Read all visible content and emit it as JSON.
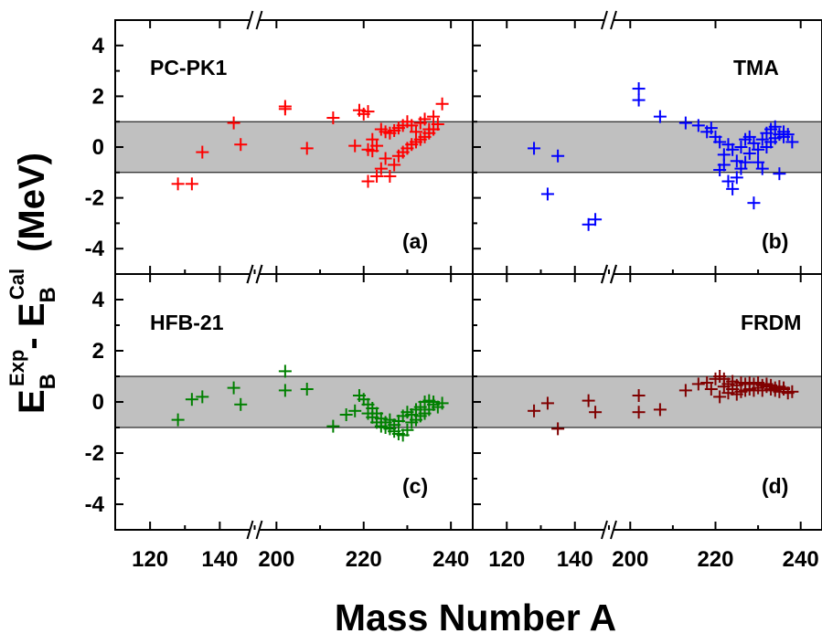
{
  "figure": {
    "xlabel": "Mass Number A",
    "ylabel": {
      "main": "E",
      "sub": "B",
      "sup_exp": "Exp",
      "dash": "- E",
      "sub2": "B",
      "sup_cal": "Cal",
      "unit": "(MeV)"
    }
  },
  "axes": {
    "x_ticks_left": [
      "120",
      "140"
    ],
    "x_ticks_right": [
      "200",
      "220",
      "240"
    ],
    "y_ticks": [
      "4",
      "2",
      "0",
      "-2",
      "-4"
    ],
    "band_color": "#c0c0c0",
    "band_range": [
      -1,
      1
    ]
  },
  "chart_data": [
    {
      "type": "scatter",
      "panel": "(a)",
      "model": "PC-PK1",
      "color": "#ff0000",
      "marker": "plus",
      "xlim_segments": [
        [
          110,
          150
        ],
        [
          195,
          245
        ]
      ],
      "ylim": [
        -5,
        5
      ],
      "points": [
        [
          128,
          -1.45
        ],
        [
          132,
          -1.45
        ],
        [
          135,
          -0.2
        ],
        [
          144,
          0.95
        ],
        [
          146,
          0.1
        ],
        [
          202,
          1.6
        ],
        [
          202,
          1.5
        ],
        [
          207,
          -0.05
        ],
        [
          213,
          1.15
        ],
        [
          218,
          0.05
        ],
        [
          219,
          1.45
        ],
        [
          220,
          1.3
        ],
        [
          221,
          1.4
        ],
        [
          221,
          -0.1
        ],
        [
          221,
          -1.35
        ],
        [
          222,
          -0.15
        ],
        [
          222,
          0.3
        ],
        [
          223,
          -1.15
        ],
        [
          223,
          0.05
        ],
        [
          224,
          -0.85
        ],
        [
          224,
          0.7
        ],
        [
          225,
          -0.45
        ],
        [
          225,
          0.6
        ],
        [
          226,
          -1.15
        ],
        [
          226,
          0.55
        ],
        [
          227,
          -0.7
        ],
        [
          227,
          0.65
        ],
        [
          228,
          -0.35
        ],
        [
          228,
          0.75
        ],
        [
          229,
          -0.2
        ],
        [
          229,
          0.85
        ],
        [
          230,
          -0.05
        ],
        [
          230,
          1.0
        ],
        [
          231,
          0.1
        ],
        [
          231,
          0.85
        ],
        [
          232,
          0.2
        ],
        [
          232,
          0.6
        ],
        [
          233,
          0.3
        ],
        [
          233,
          0.95
        ],
        [
          234,
          0.4
        ],
        [
          234,
          1.1
        ],
        [
          235,
          0.55
        ],
        [
          235,
          0.7
        ],
        [
          236,
          0.7
        ],
        [
          236,
          1.2
        ],
        [
          237,
          0.9
        ],
        [
          238,
          1.7
        ]
      ]
    },
    {
      "type": "scatter",
      "panel": "(b)",
      "model": "TMA",
      "color": "#0000ff",
      "marker": "plus",
      "xlim_segments": [
        [
          110,
          150
        ],
        [
          195,
          245
        ]
      ],
      "ylim": [
        -5,
        5
      ],
      "points": [
        [
          128,
          -0.05
        ],
        [
          132,
          -1.85
        ],
        [
          135,
          -0.35
        ],
        [
          144,
          -3.05
        ],
        [
          146,
          -2.85
        ],
        [
          202,
          2.3
        ],
        [
          202,
          1.85
        ],
        [
          207,
          1.2
        ],
        [
          213,
          0.95
        ],
        [
          216,
          0.85
        ],
        [
          218,
          0.6
        ],
        [
          219,
          0.75
        ],
        [
          220,
          0.4
        ],
        [
          221,
          -0.9
        ],
        [
          221,
          0.2
        ],
        [
          222,
          -0.3
        ],
        [
          222,
          -0.7
        ],
        [
          223,
          0.1
        ],
        [
          223,
          -1.35
        ],
        [
          224,
          -0.1
        ],
        [
          224,
          -1.65
        ],
        [
          225,
          -0.55
        ],
        [
          225,
          -1.2
        ],
        [
          226,
          0.0
        ],
        [
          226,
          -0.85
        ],
        [
          227,
          0.3
        ],
        [
          227,
          -0.6
        ],
        [
          228,
          0.4
        ],
        [
          228,
          -0.25
        ],
        [
          229,
          -2.2
        ],
        [
          229,
          0.15
        ],
        [
          230,
          -0.6
        ],
        [
          230,
          -0.1
        ],
        [
          231,
          -0.85
        ],
        [
          231,
          0.3
        ],
        [
          232,
          0.55
        ],
        [
          232,
          0.0
        ],
        [
          233,
          0.7
        ],
        [
          233,
          0.2
        ],
        [
          234,
          0.8
        ],
        [
          234,
          0.35
        ],
        [
          235,
          0.5
        ],
        [
          235,
          -1.05
        ],
        [
          236,
          0.6
        ],
        [
          236,
          0.4
        ],
        [
          237,
          0.5
        ],
        [
          238,
          0.2
        ]
      ]
    },
    {
      "type": "scatter",
      "panel": "(c)",
      "model": "HFB-21",
      "color": "#008000",
      "marker": "plus",
      "xlim_segments": [
        [
          110,
          150
        ],
        [
          195,
          245
        ]
      ],
      "ylim": [
        -5,
        5
      ],
      "points": [
        [
          128,
          -0.7
        ],
        [
          132,
          0.1
        ],
        [
          135,
          0.2
        ],
        [
          144,
          0.55
        ],
        [
          146,
          -0.1
        ],
        [
          202,
          1.2
        ],
        [
          202,
          0.45
        ],
        [
          207,
          0.5
        ],
        [
          213,
          -0.95
        ],
        [
          216,
          -0.5
        ],
        [
          218,
          -0.35
        ],
        [
          219,
          0.25
        ],
        [
          220,
          0.1
        ],
        [
          221,
          -0.1
        ],
        [
          221,
          -0.45
        ],
        [
          222,
          -0.25
        ],
        [
          222,
          -0.6
        ],
        [
          223,
          -0.8
        ],
        [
          223,
          -0.45
        ],
        [
          224,
          -0.95
        ],
        [
          224,
          -0.65
        ],
        [
          225,
          -0.8
        ],
        [
          225,
          -1.0
        ],
        [
          226,
          -0.7
        ],
        [
          226,
          -1.05
        ],
        [
          227,
          -0.9
        ],
        [
          227,
          -1.15
        ],
        [
          228,
          -0.75
        ],
        [
          228,
          -1.25
        ],
        [
          229,
          -0.55
        ],
        [
          229,
          -1.3
        ],
        [
          230,
          -0.4
        ],
        [
          230,
          -1.1
        ],
        [
          231,
          -0.8
        ],
        [
          231,
          -0.5
        ],
        [
          232,
          -0.3
        ],
        [
          232,
          -0.7
        ],
        [
          233,
          -0.55
        ],
        [
          233,
          -0.2
        ],
        [
          234,
          -0.45
        ],
        [
          234,
          0.0
        ],
        [
          235,
          -0.3
        ],
        [
          235,
          0.05
        ],
        [
          236,
          -0.1
        ],
        [
          236,
          0.0
        ],
        [
          237,
          -0.2
        ],
        [
          238,
          -0.05
        ]
      ]
    },
    {
      "type": "scatter",
      "panel": "(d)",
      "model": "FRDM",
      "color": "#800000",
      "marker": "plus",
      "xlim_segments": [
        [
          110,
          150
        ],
        [
          195,
          245
        ]
      ],
      "ylim": [
        -5,
        5
      ],
      "points": [
        [
          128,
          -0.35
        ],
        [
          132,
          -0.05
        ],
        [
          135,
          -1.05
        ],
        [
          144,
          0.05
        ],
        [
          146,
          -0.4
        ],
        [
          202,
          0.25
        ],
        [
          202,
          -0.4
        ],
        [
          207,
          -0.3
        ],
        [
          213,
          0.45
        ],
        [
          216,
          0.7
        ],
        [
          218,
          0.75
        ],
        [
          219,
          0.5
        ],
        [
          220,
          0.9
        ],
        [
          221,
          0.2
        ],
        [
          221,
          1.0
        ],
        [
          222,
          0.6
        ],
        [
          222,
          0.9
        ],
        [
          223,
          0.35
        ],
        [
          223,
          0.7
        ],
        [
          224,
          0.5
        ],
        [
          224,
          0.8
        ],
        [
          225,
          0.3
        ],
        [
          225,
          0.65
        ],
        [
          226,
          0.4
        ],
        [
          226,
          0.75
        ],
        [
          227,
          0.45
        ],
        [
          227,
          0.7
        ],
        [
          228,
          0.5
        ],
        [
          228,
          0.75
        ],
        [
          229,
          0.45
        ],
        [
          229,
          0.7
        ],
        [
          230,
          0.55
        ],
        [
          230,
          0.75
        ],
        [
          231,
          0.45
        ],
        [
          231,
          0.65
        ],
        [
          232,
          0.6
        ],
        [
          232,
          0.7
        ],
        [
          233,
          0.5
        ],
        [
          233,
          0.65
        ],
        [
          234,
          0.55
        ],
        [
          234,
          0.45
        ],
        [
          235,
          0.6
        ],
        [
          235,
          0.4
        ],
        [
          236,
          0.55
        ],
        [
          236,
          0.5
        ],
        [
          237,
          0.35
        ],
        [
          238,
          0.4
        ]
      ]
    }
  ]
}
